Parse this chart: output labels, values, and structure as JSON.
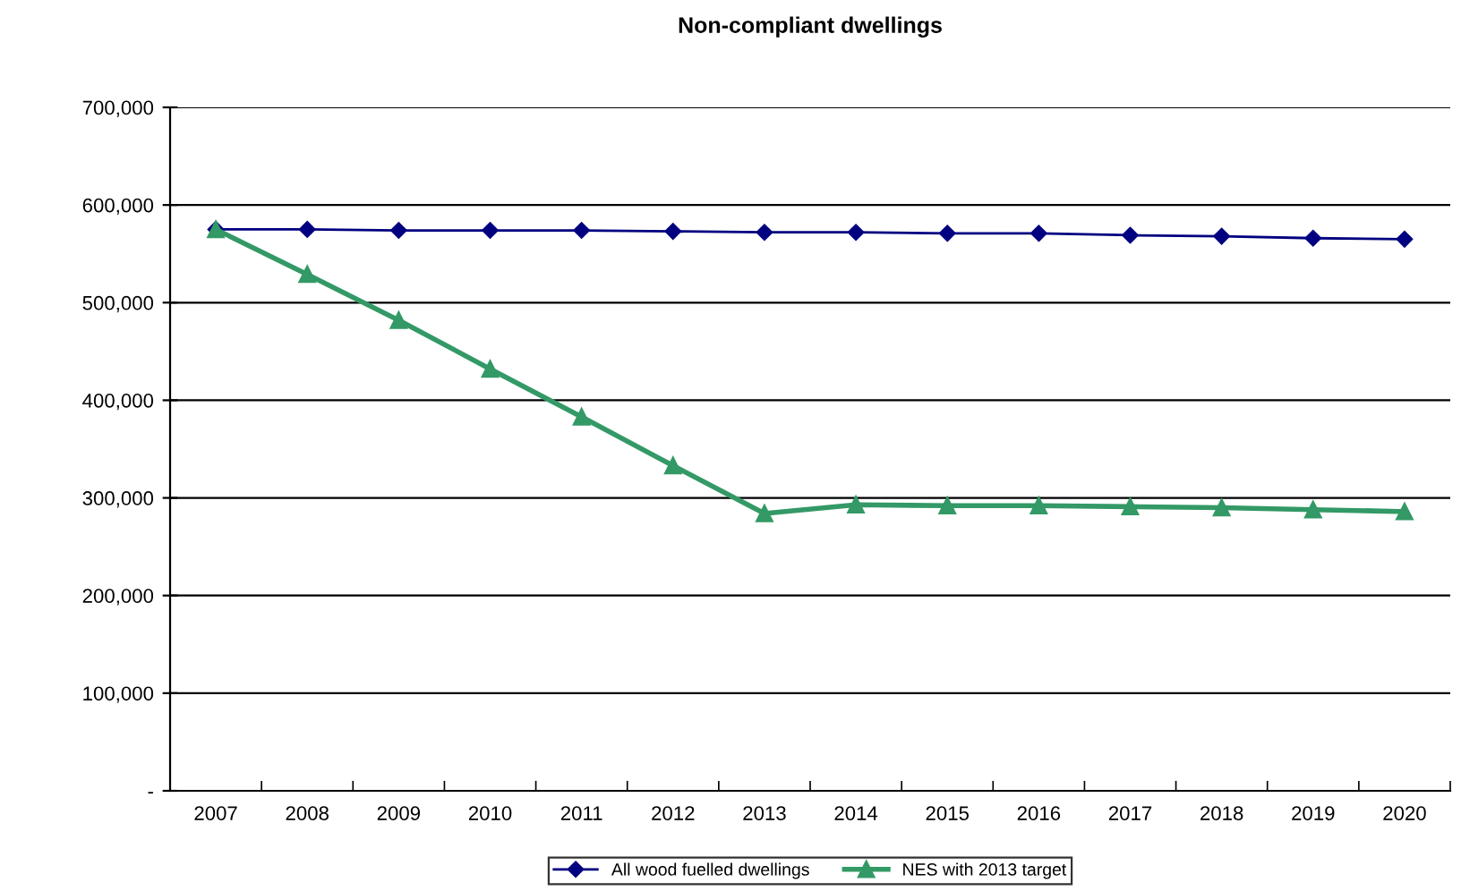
{
  "chart_data": {
    "type": "line",
    "title": "Non-compliant dwellings",
    "categories": [
      "2007",
      "2008",
      "2009",
      "2010",
      "2011",
      "2012",
      "2013",
      "2014",
      "2015",
      "2016",
      "2017",
      "2018",
      "2019",
      "2020"
    ],
    "series": [
      {
        "name": "All wood fuelled dwellings",
        "color": "#000080",
        "marker": "diamond",
        "values": [
          575000,
          575000,
          574000,
          574000,
          574000,
          573000,
          572000,
          572000,
          571000,
          571000,
          569000,
          568000,
          566000,
          565000
        ]
      },
      {
        "name": "NES with 2013 target",
        "color": "#339966",
        "marker": "triangle",
        "values": [
          575000,
          529000,
          482000,
          432000,
          383000,
          333000,
          284000,
          293000,
          292000,
          292000,
          291000,
          290000,
          288000,
          286000
        ]
      }
    ],
    "ylim": [
      0,
      700000
    ],
    "yticks": [
      {
        "value": 0,
        "label": "-"
      },
      {
        "value": 100000,
        "label": "100,000"
      },
      {
        "value": 200000,
        "label": "200,000"
      },
      {
        "value": 300000,
        "label": "300,000"
      },
      {
        "value": 400000,
        "label": "400,000"
      },
      {
        "value": 500000,
        "label": "500,000"
      },
      {
        "value": 600000,
        "label": "600,000"
      },
      {
        "value": 700000,
        "label": "700,000"
      }
    ],
    "grid": "y",
    "legend": "bottom",
    "line_style": "solid"
  }
}
